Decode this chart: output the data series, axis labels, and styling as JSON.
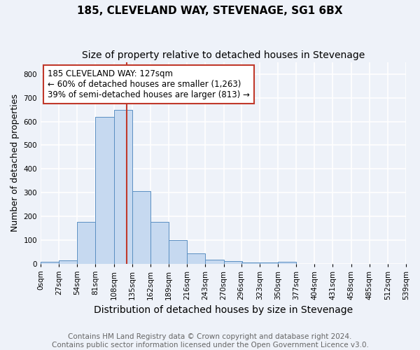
{
  "title": "185, CLEVELAND WAY, STEVENAGE, SG1 6BX",
  "subtitle": "Size of property relative to detached houses in Stevenage",
  "xlabel": "Distribution of detached houses by size in Stevenage",
  "ylabel": "Number of detached properties",
  "bin_edges": [
    0,
    27,
    54,
    81,
    108,
    135,
    162,
    189,
    216,
    243,
    270,
    296,
    323,
    350,
    377,
    404,
    431,
    458,
    485,
    512,
    539
  ],
  "bar_heights": [
    8,
    12,
    175,
    620,
    650,
    305,
    175,
    98,
    42,
    15,
    10,
    5,
    3,
    6,
    0,
    0,
    0,
    0,
    0,
    0
  ],
  "bar_color": "#c6d9f0",
  "bar_edge_color": "#5a8fc2",
  "bar_alpha": 1.0,
  "property_size": 127,
  "vline_color": "#c0392b",
  "annotation_text": "185 CLEVELAND WAY: 127sqm\n← 60% of detached houses are smaller (1,263)\n39% of semi-detached houses are larger (813) →",
  "annotation_box_color": "white",
  "annotation_box_edge": "#c0392b",
  "ylim": [
    0,
    850
  ],
  "yticks": [
    0,
    100,
    200,
    300,
    400,
    500,
    600,
    700,
    800
  ],
  "footer_text": "Contains HM Land Registry data © Crown copyright and database right 2024.\nContains public sector information licensed under the Open Government Licence v3.0.",
  "bg_color": "#eef2f9",
  "grid_color": "white",
  "title_fontsize": 11,
  "subtitle_fontsize": 10,
  "xlabel_fontsize": 10,
  "ylabel_fontsize": 9,
  "tick_fontsize": 7.5,
  "annotation_fontsize": 8.5,
  "footer_fontsize": 7.5
}
